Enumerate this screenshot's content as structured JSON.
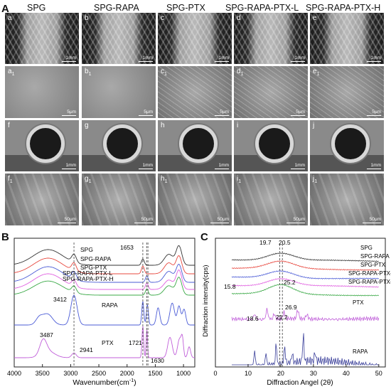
{
  "panel_labels": {
    "A": "A",
    "B": "B",
    "C": "C"
  },
  "columns": [
    "SPG",
    "SPG-RAPA",
    "SPG-PTX",
    "SPG-RAPA-PTX-L",
    "SPG-RAPA-PTX-H"
  ],
  "rows": [
    {
      "labels": [
        "a",
        "b",
        "c",
        "d",
        "e"
      ],
      "subscript": "",
      "scale": "1mm",
      "kind": "braid"
    },
    {
      "labels": [
        "a",
        "b",
        "c",
        "d",
        "e"
      ],
      "subscript": "1",
      "scale": "5μm",
      "kind": "surface"
    },
    {
      "labels": [
        "f",
        "g",
        "h",
        "i",
        "j"
      ],
      "subscript": "",
      "scale": "1mm",
      "kind": "cross"
    },
    {
      "labels": [
        "f",
        "g",
        "h",
        "i",
        "j"
      ],
      "subscript": "1",
      "scale": "50μm",
      "kind": "fiber"
    }
  ],
  "chart_data": [
    {
      "type": "line",
      "panel": "B",
      "xlabel": "Wavenumber(cm",
      "xlabel_sup": "-1",
      "xlabel_tail": ")",
      "xlim": [
        4000,
        800
      ],
      "xticks": [
        4000,
        3500,
        3000,
        2500,
        2000,
        1500,
        1000
      ],
      "series": [
        {
          "name": "SPG",
          "color": "#333333"
        },
        {
          "name": "SPG-RAPA",
          "color": "#e8483f"
        },
        {
          "name": "SPG-PTX",
          "color": "#4a5bd6"
        },
        {
          "name": "SPG-RAPA-PTX-L",
          "color": "#e060e0"
        },
        {
          "name": "SPG-RAPA-PTX-H",
          "color": "#39a845"
        },
        {
          "name": "RAPA",
          "color": "#4a5bd6"
        },
        {
          "name": "PTX",
          "color": "#c05fd9"
        }
      ],
      "annotations": [
        "1653",
        "3412",
        "2941",
        "3487",
        "1721",
        "1630"
      ]
    },
    {
      "type": "line",
      "panel": "C",
      "xlabel": "Diffraction Angel (2θ)",
      "ylabel": "Diffraction intensity(cps)",
      "xlim": [
        0,
        52
      ],
      "xticks": [
        0,
        10,
        20,
        30,
        40,
        50
      ],
      "series": [
        {
          "name": "SPG",
          "color": "#333333"
        },
        {
          "name": "SPG-RAPA",
          "color": "#e8483f"
        },
        {
          "name": "SPG-PTX",
          "color": "#4a5bd6"
        },
        {
          "name": "SPG-RAPA-PTX-L",
          "color": "#e060e0"
        },
        {
          "name": "SPG-RAPA-PTX-H",
          "color": "#39a845"
        },
        {
          "name": "PTX",
          "color": "#c05fd9"
        },
        {
          "name": "RAPA",
          "color": "#3a3f9a"
        }
      ],
      "annotations": [
        "19.7",
        "20.5",
        "15.8",
        "25.2",
        "18.6",
        "21.2",
        "26.9"
      ]
    }
  ]
}
